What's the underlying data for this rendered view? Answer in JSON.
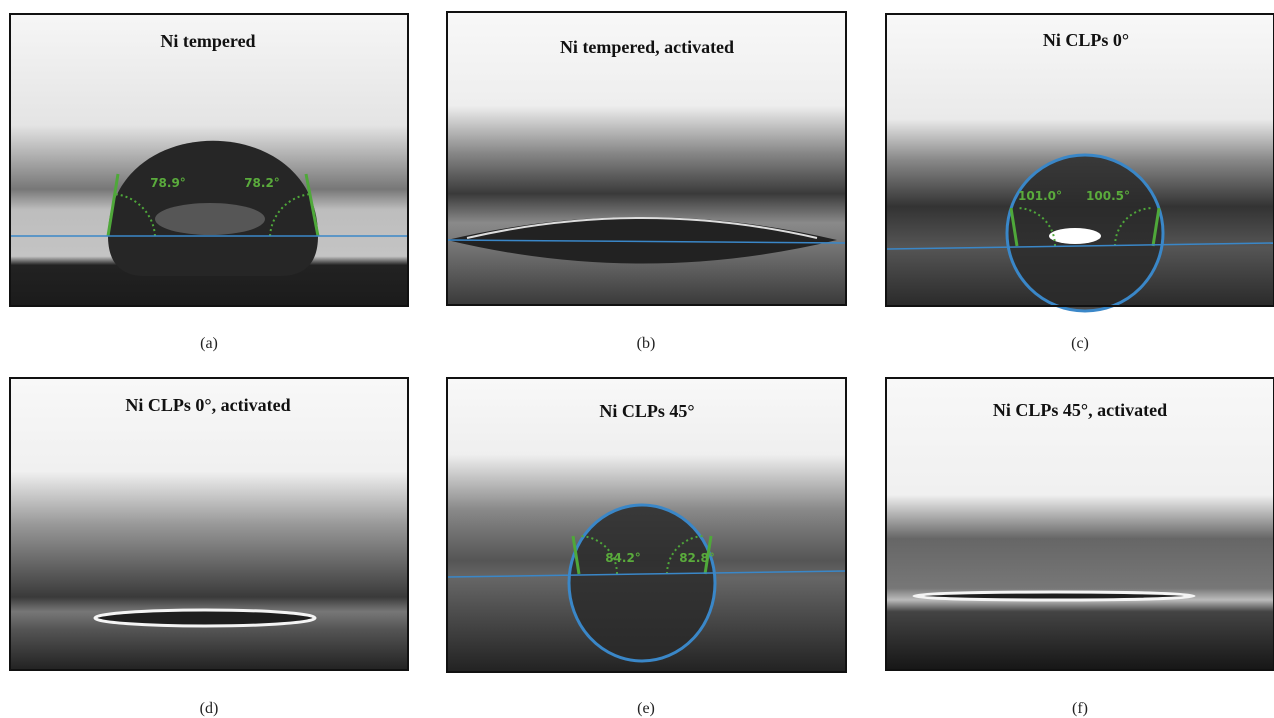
{
  "panels": [
    {
      "title": "Ni tempered",
      "angles": [
        "78.9°",
        "78.2°"
      ],
      "caption": "(a)"
    },
    {
      "title": "Ni tempered, activated",
      "angles": [],
      "caption": "(b)"
    },
    {
      "title": "Ni CLPs 0°",
      "angles": [
        "101.0°",
        "100.5°"
      ],
      "caption": "(c)"
    },
    {
      "title": "Ni CLPs 0°, activated",
      "angles": [],
      "caption": "(d)"
    },
    {
      "title": "Ni CLPs 45°",
      "angles": [
        "84.2°",
        "82.8°"
      ],
      "caption": "(e)"
    },
    {
      "title": "Ni CLPs 45°, activated",
      "angles": [],
      "caption": "(f)"
    }
  ]
}
